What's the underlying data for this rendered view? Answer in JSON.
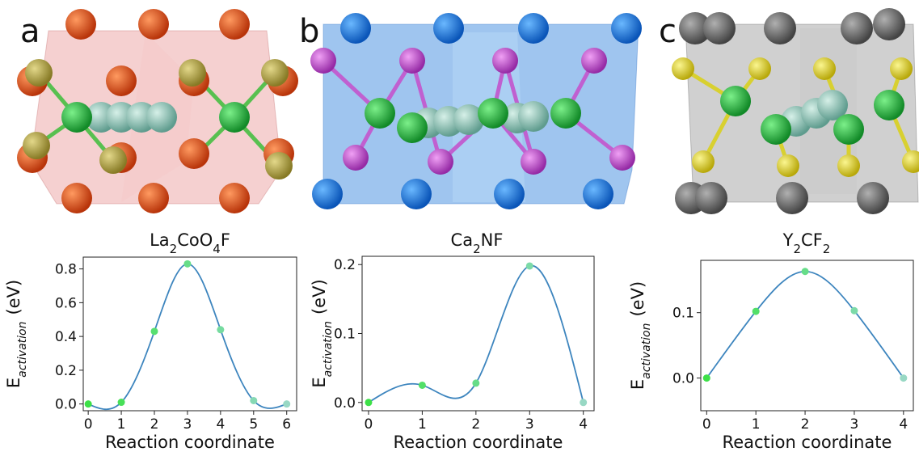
{
  "chart_data": [
    {
      "type": "line",
      "label": "a",
      "formula": [
        "La",
        "2",
        "CoO",
        "4",
        "F"
      ],
      "xlabel": "Reaction coordinate",
      "ylabel": [
        "E",
        "activation",
        "(eV)"
      ],
      "x": [
        0,
        1,
        2,
        3,
        4,
        5,
        6
      ],
      "values": [
        0.0,
        0.01,
        0.43,
        0.83,
        0.44,
        0.02,
        0.0
      ],
      "color": "#3d85be",
      "point_colors": [
        "#3de048",
        "#48e058",
        "#58df70",
        "#66dd88",
        "#76dba0",
        "#86d9b4",
        "#98d8c4"
      ],
      "xlim": [
        -0.15,
        6.3
      ],
      "ylim": [
        -0.04,
        0.87
      ],
      "xticks": [
        0,
        1,
        2,
        3,
        4,
        5,
        6
      ],
      "yticks": [
        {
          "value": 0,
          "label": "0.0"
        },
        0.2,
        0.4,
        0.6,
        0.8
      ]
    },
    {
      "type": "line",
      "label": "b",
      "formula": [
        "Ca",
        "2",
        "NF"
      ],
      "xlabel": "Reaction coordinate",
      "ylabel": [
        "E",
        "activation",
        "(eV)"
      ],
      "x": [
        0,
        1,
        2,
        3,
        4
      ],
      "values": [
        0.0,
        0.025,
        0.028,
        0.198,
        0.0
      ],
      "color": "#3d85be",
      "point_colors": [
        "#3de048",
        "#52df68",
        "#66dd88",
        "#7cdaa8",
        "#98d8c4"
      ],
      "xlim": [
        -0.12,
        4.2
      ],
      "ylim": [
        -0.012,
        0.212
      ],
      "xticks": [
        0,
        1,
        2,
        3,
        4
      ],
      "yticks": [
        {
          "value": 0,
          "label": "0.0"
        },
        0.1,
        0.2
      ]
    },
    {
      "type": "line",
      "label": "c",
      "formula": [
        "Y",
        "2",
        "CF",
        "2"
      ],
      "xlabel": "Reaction coordinate",
      "ylabel": [
        "E",
        "activation",
        "(eV)"
      ],
      "x": [
        0,
        1,
        2,
        3,
        4
      ],
      "values": [
        0.0,
        0.102,
        0.163,
        0.103,
        0.0
      ],
      "color": "#3d85be",
      "point_colors": [
        "#3de048",
        "#52df68",
        "#66dd88",
        "#7cdaa8",
        "#98d8c4"
      ],
      "xlim": [
        -0.12,
        4.2
      ],
      "ylim": [
        -0.05,
        0.18
      ],
      "xticks": [
        0,
        1,
        2,
        3,
        4
      ],
      "yticks": [
        {
          "value": 0,
          "label": "0.0"
        },
        0.1
      ]
    }
  ]
}
